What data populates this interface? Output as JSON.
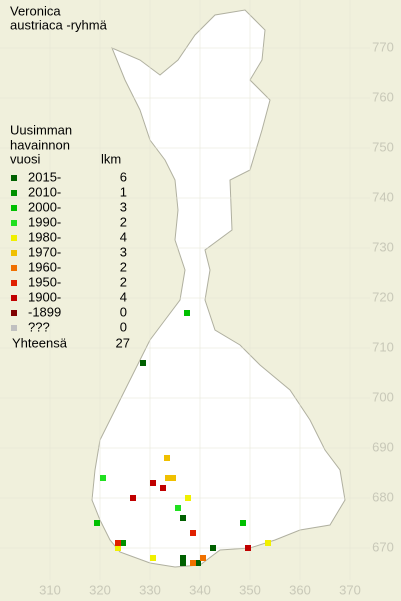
{
  "title": [
    "Veronica",
    "austriaca -ryhmä"
  ],
  "legend": {
    "heading": [
      "Uusimman",
      "havainnon"
    ],
    "year_header": "vuosi",
    "count_header": "lkm",
    "rows": [
      {
        "label": "2015-",
        "count": "6",
        "color": "#006000",
        "points": [
          [
            328.6,
            707
          ],
          [
            336.6,
            676
          ],
          [
            342.6,
            670
          ],
          [
            336.6,
            667
          ],
          [
            339.6,
            667
          ],
          [
            336.6,
            668
          ]
        ]
      },
      {
        "label": "2010-",
        "count": "1",
        "color": "#009000",
        "points": [
          [
            324.6,
            671
          ]
        ]
      },
      {
        "label": "2000-",
        "count": "3",
        "color": "#00c000",
        "points": [
          [
            337.4,
            717
          ],
          [
            319.4,
            675
          ],
          [
            348.6,
            675
          ]
        ]
      },
      {
        "label": "1990-",
        "count": "2",
        "color": "#20e020",
        "points": [
          [
            320.6,
            684
          ],
          [
            335.6,
            678
          ]
        ]
      },
      {
        "label": "1980-",
        "count": "4",
        "color": "#f0f000",
        "points": [
          [
            337.6,
            680
          ],
          [
            323.6,
            670
          ],
          [
            353.6,
            671
          ],
          [
            330.6,
            668
          ]
        ]
      },
      {
        "label": "1970-",
        "count": "3",
        "color": "#f0c000",
        "points": [
          [
            333.4,
            688
          ],
          [
            333.6,
            684
          ],
          [
            334.6,
            684
          ]
        ]
      },
      {
        "label": "1960-",
        "count": "2",
        "color": "#f07000",
        "points": [
          [
            338.6,
            667
          ],
          [
            340.6,
            668
          ]
        ]
      },
      {
        "label": "1950-",
        "count": "2",
        "color": "#e02000",
        "points": [
          [
            338.6,
            673
          ],
          [
            323.6,
            671
          ]
        ]
      },
      {
        "label": "1900-",
        "count": "4",
        "color": "#c00000",
        "points": [
          [
            330.6,
            683
          ],
          [
            326.6,
            680
          ],
          [
            332.6,
            682
          ],
          [
            349.6,
            670
          ]
        ]
      },
      {
        "label": "-1899",
        "count": "0",
        "color": "#800000",
        "points": []
      },
      {
        "label": "???",
        "count": "0",
        "color": "#c0c0c0",
        "points": []
      }
    ],
    "total_label": "Yhteensä",
    "total": "27"
  },
  "xticks": [
    310,
    320,
    330,
    340,
    350,
    360,
    370
  ],
  "yticks": [
    670,
    680,
    690,
    700,
    710,
    720,
    730,
    740,
    750,
    760,
    770
  ]
}
